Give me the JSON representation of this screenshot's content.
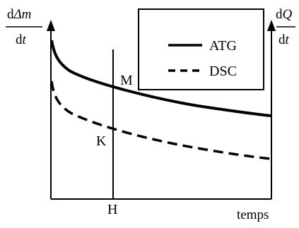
{
  "left_axis": {
    "numerator_prefix": "d",
    "numerator_symbol": "Δm",
    "denominator_prefix": "d",
    "denominator_symbol": "t"
  },
  "right_axis": {
    "numerator_prefix": "d",
    "numerator_symbol": "Q",
    "denominator_prefix": "d",
    "denominator_symbol": "t"
  },
  "x_axis_label": "temps",
  "points": {
    "M": "M",
    "K": "K",
    "H": "H"
  },
  "legend": {
    "items": [
      {
        "label": "ATG",
        "line_style": "solid"
      },
      {
        "label": "DSC",
        "line_style": "dashed"
      }
    ]
  },
  "colors": {
    "ink": "#000000",
    "background": "#ffffff"
  }
}
